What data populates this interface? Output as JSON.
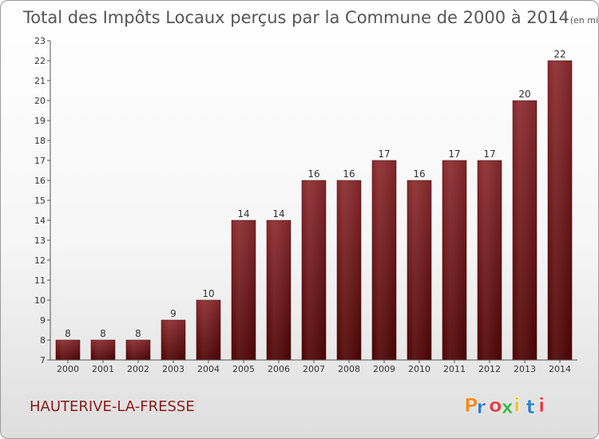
{
  "chart_data": {
    "type": "bar",
    "title": "Total des Impôts Locaux perçus par la Commune de 2000 à 2014",
    "unit": "(en milliers d'€)",
    "xlabel": "",
    "ylabel": "",
    "categories": [
      "2000",
      "2001",
      "2002",
      "2003",
      "2004",
      "2005",
      "2006",
      "2007",
      "2008",
      "2009",
      "2010",
      "2011",
      "2012",
      "2013",
      "2014"
    ],
    "values": [
      8,
      8,
      8,
      9,
      10,
      14,
      14,
      16,
      16,
      17,
      16,
      17,
      17,
      20,
      22
    ],
    "ylim": [
      7,
      23
    ],
    "yticks": [
      7,
      8,
      9,
      10,
      11,
      12,
      13,
      14,
      15,
      16,
      17,
      18,
      19,
      20,
      21,
      22,
      23
    ],
    "grid": false,
    "bar_color": "#6e0f0f"
  },
  "commune_name": "HAUTERIVE-LA-FRESSE",
  "logo": {
    "letters": [
      "P",
      "r",
      "o",
      "x",
      "i",
      "t",
      "i"
    ],
    "colors": [
      "#f08a1c",
      "#2a7fc9",
      "#e23b3b",
      "#3bb54a",
      "#f0c419",
      "#2a7fc9",
      "#e23b3b"
    ]
  }
}
